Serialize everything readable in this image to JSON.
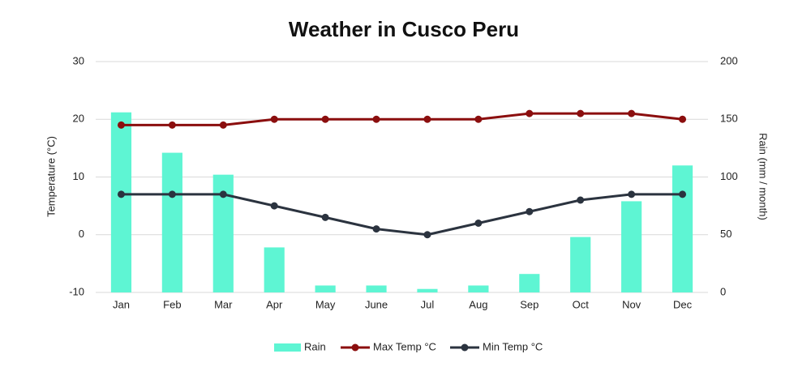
{
  "chart_data": {
    "type": "combo",
    "title": "Weather in Cusco Peru",
    "y_label": "Temperature  (°C)",
    "y2_label": "Rain (mm / month)",
    "categories": [
      "Jan",
      "Feb",
      "Mar",
      "Apr",
      "May",
      "June",
      "Jul",
      "Aug",
      "Sep",
      "Oct",
      "Nov",
      "Dec"
    ],
    "series": [
      {
        "name": "Rain",
        "type": "bar",
        "axis": "y2",
        "color": "#5ef5d3",
        "values": [
          156,
          121,
          102,
          39,
          6,
          6,
          3,
          6,
          16,
          48,
          79,
          110
        ]
      },
      {
        "name": "Max Temp °C",
        "type": "line",
        "axis": "y",
        "color": "#8b0e0e",
        "values": [
          19,
          19,
          19,
          20,
          20,
          20,
          20,
          20,
          21,
          21,
          21,
          20
        ]
      },
      {
        "name": "Min Temp °C",
        "type": "line",
        "axis": "y",
        "color": "#2b333f",
        "values": [
          7,
          7,
          7,
          5,
          3,
          1,
          0,
          2,
          4,
          6,
          7,
          7
        ]
      }
    ],
    "ylim": [
      -10,
      30
    ],
    "yticks": [
      -10,
      0,
      10,
      20,
      30
    ],
    "y2lim": [
      0,
      200
    ],
    "y2ticks": [
      0,
      50,
      100,
      150,
      200
    ],
    "grid": true,
    "legend": "bottom"
  }
}
